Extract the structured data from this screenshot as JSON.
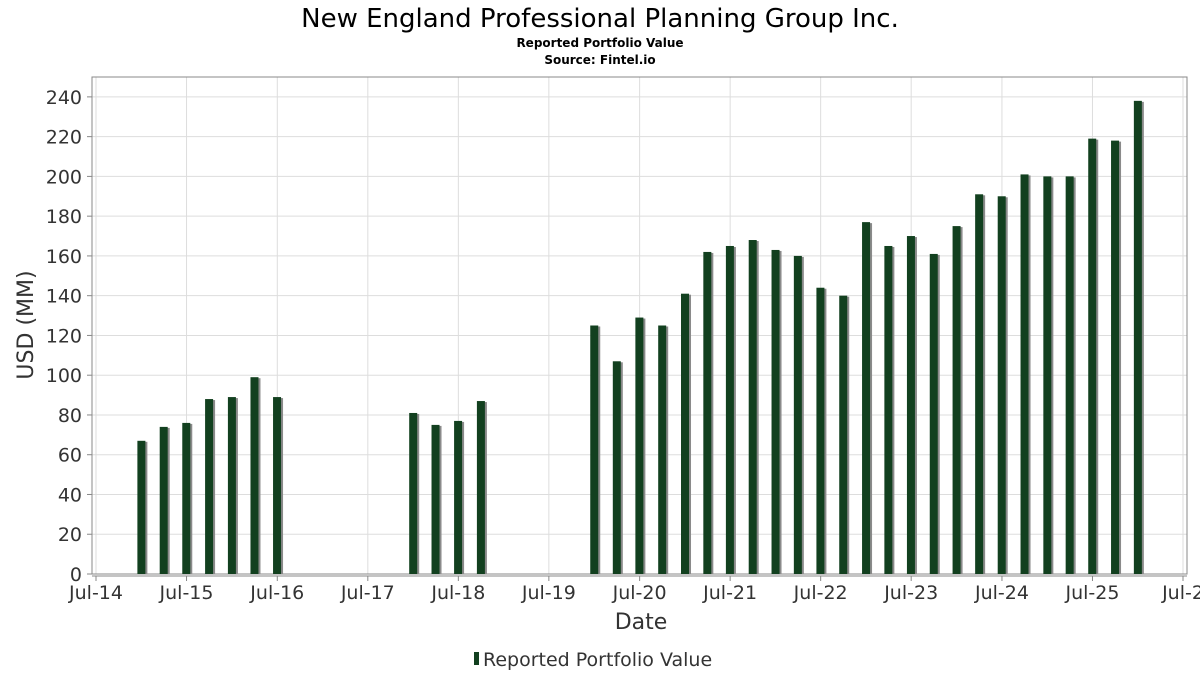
{
  "colors": {
    "bar": "#12401f",
    "bar_shadow": "#8a8a8a",
    "grid": "#dddddd",
    "axis": "#888888"
  },
  "chart_data": {
    "type": "bar",
    "title": "New England Professional Planning Group Inc.",
    "subtitle": "Reported Portfolio Value",
    "source": "Source: Fintel.io",
    "xlabel": "Date",
    "ylabel": "USD (MM)",
    "ylim": [
      0,
      250
    ],
    "yticks": [
      0,
      20,
      40,
      60,
      80,
      100,
      120,
      140,
      160,
      180,
      200,
      220,
      240
    ],
    "x_ticks": [
      {
        "label": "Jul-14",
        "date": "2014-07-01"
      },
      {
        "label": "Jul-15",
        "date": "2015-07-01"
      },
      {
        "label": "Jul-16",
        "date": "2016-07-01"
      },
      {
        "label": "Jul-17",
        "date": "2017-07-01"
      },
      {
        "label": "Jul-18",
        "date": "2018-07-01"
      },
      {
        "label": "Jul-19",
        "date": "2019-07-01"
      },
      {
        "label": "Jul-20",
        "date": "2020-07-01"
      },
      {
        "label": "Jul-21",
        "date": "2021-07-01"
      },
      {
        "label": "Jul-22",
        "date": "2022-07-01"
      },
      {
        "label": "Jul-23",
        "date": "2023-07-01"
      },
      {
        "label": "Jul-24",
        "date": "2024-07-01"
      },
      {
        "label": "Jul-25",
        "date": "2025-07-01"
      },
      {
        "label": "Jul-2",
        "date": "2026-07-01"
      }
    ],
    "xlim": [
      "2014-07-01",
      "2026-07-01"
    ],
    "grid": true,
    "legend_position": "bottom-center",
    "series": [
      {
        "name": "Reported Portfolio Value",
        "points": [
          {
            "date": "2014-12-31",
            "value": 67
          },
          {
            "date": "2015-03-31",
            "value": 74
          },
          {
            "date": "2015-06-30",
            "value": 76
          },
          {
            "date": "2015-09-30",
            "value": 88
          },
          {
            "date": "2015-12-31",
            "value": 89
          },
          {
            "date": "2016-03-31",
            "value": 99
          },
          {
            "date": "2016-06-30",
            "value": 89
          },
          {
            "date": "2017-12-31",
            "value": 81
          },
          {
            "date": "2018-03-31",
            "value": 75
          },
          {
            "date": "2018-06-30",
            "value": 77
          },
          {
            "date": "2018-09-30",
            "value": 87
          },
          {
            "date": "2019-12-31",
            "value": 125
          },
          {
            "date": "2020-03-31",
            "value": 107
          },
          {
            "date": "2020-06-30",
            "value": 129
          },
          {
            "date": "2020-09-30",
            "value": 125
          },
          {
            "date": "2020-12-31",
            "value": 141
          },
          {
            "date": "2021-03-31",
            "value": 162
          },
          {
            "date": "2021-06-30",
            "value": 165
          },
          {
            "date": "2021-09-30",
            "value": 168
          },
          {
            "date": "2021-12-31",
            "value": 163
          },
          {
            "date": "2022-03-31",
            "value": 160
          },
          {
            "date": "2022-06-30",
            "value": 144
          },
          {
            "date": "2022-09-30",
            "value": 140
          },
          {
            "date": "2022-12-31",
            "value": 177
          },
          {
            "date": "2023-03-31",
            "value": 165
          },
          {
            "date": "2023-06-30",
            "value": 170
          },
          {
            "date": "2023-09-30",
            "value": 161
          },
          {
            "date": "2023-12-31",
            "value": 175
          },
          {
            "date": "2024-03-31",
            "value": 191
          },
          {
            "date": "2024-06-30",
            "value": 190
          },
          {
            "date": "2024-09-30",
            "value": 201
          },
          {
            "date": "2024-12-31",
            "value": 200
          },
          {
            "date": "2025-03-31",
            "value": 200
          },
          {
            "date": "2025-06-30",
            "value": 219
          },
          {
            "date": "2025-09-30",
            "value": 218
          },
          {
            "date": "2025-12-31",
            "value": 238
          }
        ]
      }
    ]
  }
}
